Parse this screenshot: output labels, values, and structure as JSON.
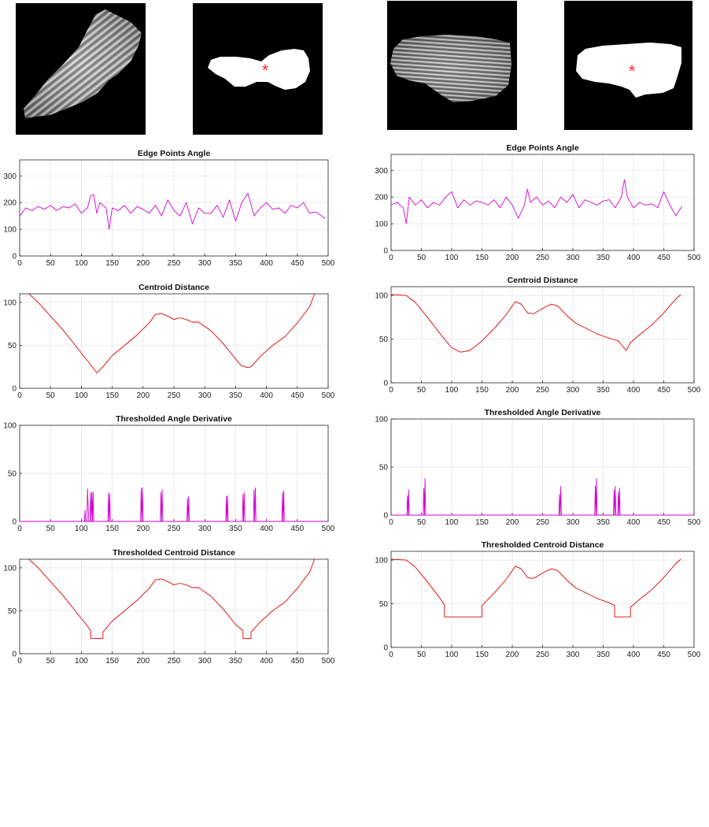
{
  "images": {
    "left_grayscale": {
      "kind": "grayscale-particle"
    },
    "left_binary": {
      "kind": "binary-mask-with-centroid"
    },
    "right_grayscale": {
      "kind": "grayscale-particle"
    },
    "right_binary": {
      "kind": "binary-mask-with-centroid"
    },
    "centroid_marker_color": "#ff2a2a"
  },
  "colors": {
    "angle_series": "#d400d4",
    "distance_series": "#e00000",
    "axes": "#262626",
    "grid": "#e3e3e3"
  },
  "chart_data": [
    {
      "id": "left-angle",
      "type": "line",
      "title": "Edge Points Angle",
      "xlim": [
        0,
        500
      ],
      "ylim": [
        0,
        360
      ],
      "xticks": [
        0,
        50,
        100,
        150,
        200,
        250,
        300,
        350,
        400,
        450,
        500
      ],
      "yticks": [
        0,
        100,
        200,
        300
      ],
      "series_color": "angle",
      "x": [
        0,
        10,
        20,
        30,
        40,
        50,
        60,
        70,
        80,
        90,
        100,
        110,
        115,
        120,
        125,
        130,
        140,
        145,
        150,
        160,
        170,
        180,
        190,
        200,
        210,
        220,
        230,
        240,
        250,
        260,
        270,
        280,
        290,
        300,
        310,
        320,
        330,
        340,
        350,
        360,
        370,
        380,
        390,
        400,
        410,
        420,
        430,
        440,
        450,
        460,
        470,
        480,
        490,
        495
      ],
      "y": [
        150,
        180,
        170,
        185,
        175,
        190,
        170,
        185,
        180,
        195,
        160,
        180,
        225,
        230,
        160,
        200,
        180,
        100,
        180,
        170,
        190,
        160,
        185,
        175,
        160,
        190,
        150,
        210,
        170,
        150,
        200,
        120,
        180,
        160,
        160,
        190,
        145,
        210,
        130,
        200,
        235,
        150,
        180,
        200,
        175,
        180,
        160,
        190,
        180,
        200,
        160,
        165,
        150,
        140
      ]
    },
    {
      "id": "left-distance",
      "type": "line",
      "title": "Centroid Distance",
      "xlim": [
        0,
        500
      ],
      "ylim": [
        0,
        110
      ],
      "xticks": [
        0,
        50,
        100,
        150,
        200,
        250,
        300,
        350,
        400,
        450,
        500
      ],
      "yticks": [
        0,
        50,
        100
      ],
      "series_color": "distance",
      "x": [
        15,
        30,
        50,
        70,
        90,
        110,
        125,
        135,
        150,
        170,
        190,
        210,
        220,
        230,
        240,
        250,
        260,
        270,
        280,
        290,
        300,
        310,
        330,
        350,
        360,
        370,
        375,
        390,
        410,
        430,
        450,
        470,
        478
      ],
      "y": [
        110,
        100,
        84,
        68,
        50,
        32,
        18,
        25,
        38,
        50,
        62,
        76,
        86,
        87,
        84,
        80,
        82,
        80,
        77,
        77,
        72,
        67,
        52,
        34,
        26,
        24,
        25,
        37,
        50,
        60,
        76,
        95,
        110
      ]
    },
    {
      "id": "left-threshold-angle",
      "type": "line",
      "title": "Thresholded Angle Derivative",
      "xlim": [
        0,
        500
      ],
      "ylim": [
        0,
        100
      ],
      "xticks": [
        0,
        50,
        100,
        150,
        200,
        250,
        300,
        350,
        400,
        450,
        500
      ],
      "yticks": [
        0,
        50,
        100
      ],
      "series_color": "angle",
      "x": [
        0,
        105,
        106,
        107,
        109,
        110,
        112,
        114,
        115,
        116,
        117,
        118,
        119,
        120,
        122,
        143,
        144,
        145,
        146,
        147,
        196,
        197,
        198,
        199,
        200,
        228,
        229,
        230,
        231,
        232,
        271,
        272,
        273,
        274,
        275,
        334,
        335,
        336,
        337,
        338,
        361,
        362,
        363,
        364,
        365,
        379,
        380,
        381,
        382,
        383,
        425,
        426,
        427,
        428,
        429,
        500
      ],
      "y": [
        0,
        0,
        12,
        0,
        0,
        34,
        0,
        0,
        30,
        0,
        30,
        0,
        31,
        0,
        0,
        0,
        30,
        0,
        28,
        0,
        0,
        34,
        0,
        35,
        0,
        0,
        30,
        0,
        33,
        0,
        0,
        24,
        0,
        26,
        0,
        0,
        26,
        0,
        27,
        0,
        0,
        28,
        0,
        30,
        0,
        0,
        33,
        0,
        35,
        0,
        0,
        30,
        0,
        32,
        0,
        0
      ]
    },
    {
      "id": "left-threshold-distance",
      "type": "line",
      "title": "Thresholded Centroid Distance",
      "xlim": [
        0,
        500
      ],
      "ylim": [
        0,
        110
      ],
      "xticks": [
        0,
        50,
        100,
        150,
        200,
        250,
        300,
        350,
        400,
        450,
        500
      ],
      "yticks": [
        0,
        50,
        100
      ],
      "series_color": "distance",
      "x": [
        15,
        30,
        50,
        70,
        90,
        110,
        115,
        115,
        135,
        135,
        150,
        170,
        190,
        210,
        220,
        230,
        240,
        250,
        260,
        270,
        280,
        290,
        300,
        310,
        330,
        350,
        360,
        362,
        362,
        375,
        375,
        390,
        410,
        430,
        450,
        470,
        478
      ],
      "y": [
        110,
        100,
        84,
        68,
        50,
        32,
        27,
        18,
        18,
        25,
        38,
        50,
        62,
        76,
        86,
        87,
        84,
        80,
        82,
        80,
        77,
        77,
        72,
        67,
        52,
        34,
        28,
        27,
        18,
        18,
        25,
        37,
        50,
        60,
        76,
        95,
        110
      ]
    },
    {
      "id": "right-angle",
      "type": "line",
      "title": "Edge Points Angle",
      "xlim": [
        0,
        500
      ],
      "ylim": [
        0,
        360
      ],
      "xticks": [
        0,
        50,
        100,
        150,
        200,
        250,
        300,
        350,
        400,
        450,
        500
      ],
      "yticks": [
        0,
        100,
        200,
        300
      ],
      "series_color": "angle",
      "x": [
        0,
        10,
        20,
        25,
        30,
        40,
        50,
        60,
        70,
        80,
        90,
        100,
        110,
        120,
        130,
        140,
        150,
        160,
        170,
        180,
        190,
        200,
        210,
        220,
        225,
        230,
        240,
        250,
        260,
        270,
        280,
        290,
        300,
        310,
        320,
        330,
        340,
        350,
        360,
        370,
        380,
        385,
        390,
        400,
        410,
        420,
        430,
        440,
        450,
        460,
        470,
        480
      ],
      "y": [
        170,
        180,
        160,
        100,
        200,
        170,
        190,
        160,
        180,
        170,
        200,
        220,
        160,
        190,
        170,
        185,
        180,
        170,
        190,
        160,
        200,
        170,
        120,
        170,
        230,
        180,
        200,
        170,
        185,
        160,
        200,
        180,
        210,
        160,
        190,
        180,
        170,
        185,
        190,
        160,
        200,
        265,
        200,
        160,
        180,
        170,
        175,
        160,
        220,
        170,
        130,
        165
      ]
    },
    {
      "id": "right-distance",
      "type": "line",
      "title": "Centroid Distance",
      "xlim": [
        0,
        500
      ],
      "ylim": [
        0,
        110
      ],
      "xticks": [
        0,
        50,
        100,
        150,
        200,
        250,
        300,
        350,
        400,
        450,
        500
      ],
      "yticks": [
        0,
        50,
        100
      ],
      "series_color": "distance",
      "x": [
        0,
        25,
        40,
        60,
        80,
        100,
        115,
        130,
        150,
        170,
        190,
        205,
        215,
        225,
        235,
        245,
        255,
        265,
        275,
        290,
        305,
        320,
        340,
        360,
        375,
        382,
        388,
        395,
        410,
        430,
        450,
        470,
        478
      ],
      "y": [
        101,
        100,
        92,
        75,
        57,
        40,
        35,
        37,
        48,
        62,
        78,
        93,
        90,
        80,
        79,
        83,
        87,
        90,
        88,
        77,
        68,
        63,
        56,
        51,
        48,
        42,
        37,
        46,
        55,
        66,
        80,
        96,
        101
      ]
    },
    {
      "id": "right-threshold-angle",
      "type": "line",
      "title": "Thresholded Angle Derivative",
      "xlim": [
        0,
        500
      ],
      "ylim": [
        0,
        100
      ],
      "xticks": [
        0,
        50,
        100,
        150,
        200,
        250,
        300,
        350,
        400,
        450,
        500
      ],
      "yticks": [
        0,
        50,
        100
      ],
      "series_color": "angle",
      "x": [
        0,
        26,
        27,
        28,
        29,
        30,
        53,
        54,
        55,
        56,
        57,
        277,
        278,
        279,
        280,
        281,
        336,
        337,
        338,
        339,
        340,
        367,
        368,
        369,
        370,
        371,
        374,
        375,
        376,
        377,
        378,
        500
      ],
      "y": [
        0,
        0,
        20,
        0,
        26,
        0,
        0,
        28,
        0,
        38,
        0,
        0,
        22,
        0,
        30,
        0,
        0,
        30,
        0,
        38,
        0,
        0,
        26,
        0,
        30,
        0,
        0,
        24,
        0,
        28,
        0,
        0
      ]
    },
    {
      "id": "right-threshold-distance",
      "type": "line",
      "title": "Thresholded Centroid Distance",
      "xlim": [
        0,
        500
      ],
      "ylim": [
        0,
        110
      ],
      "xticks": [
        0,
        50,
        100,
        150,
        200,
        250,
        300,
        350,
        400,
        450,
        500
      ],
      "yticks": [
        0,
        50,
        100
      ],
      "series_color": "distance",
      "x": [
        0,
        25,
        40,
        60,
        80,
        88,
        88,
        150,
        150,
        170,
        190,
        205,
        215,
        225,
        235,
        245,
        255,
        265,
        275,
        290,
        305,
        320,
        340,
        360,
        369,
        369,
        395,
        395,
        410,
        430,
        450,
        470,
        478
      ],
      "y": [
        101,
        100,
        92,
        75,
        57,
        49,
        35,
        35,
        48,
        62,
        78,
        93,
        90,
        80,
        79,
        83,
        87,
        90,
        88,
        77,
        68,
        63,
        56,
        51,
        48,
        35,
        35,
        46,
        55,
        66,
        80,
        96,
        101
      ]
    }
  ]
}
